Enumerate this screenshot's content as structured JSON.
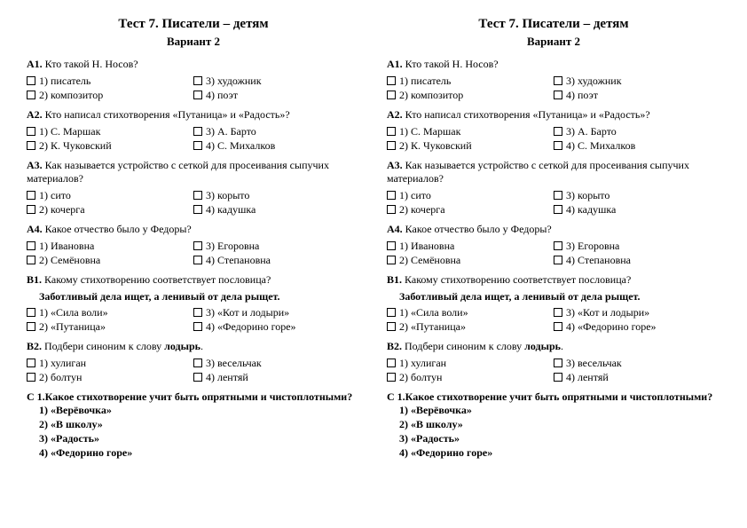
{
  "title": "Тест 7. Писатели – детям",
  "variant": "Вариант 2",
  "a1": {
    "label": "А1.",
    "text": "Кто такой Н. Носов?",
    "o1": "1) писатель",
    "o2": "2) композитор",
    "o3": "3) художник",
    "o4": "4) поэт"
  },
  "a2": {
    "label": "А2.",
    "text": "Кто написал стихотворения «Путаница» и «Радость»?",
    "o1": "1) С. Маршак",
    "o2": "2) К. Чуковский",
    "o3": "3) А. Барто",
    "o4": "4) С. Михалков"
  },
  "a3": {
    "label": "А3.",
    "text": "Как называется устройство с сеткой для просеивания сыпучих материалов?",
    "o1": "1) сито",
    "o2": "2) кочерга",
    "o3": "3) корыто",
    "o4": "4) кадушка"
  },
  "a4": {
    "label": "А4.",
    "text": "Какое отчество было у Федоры?",
    "o1": "1) Ивановна",
    "o2": "2) Семёновна",
    "o3": "3) Егоровна",
    "o4": "4) Степановна"
  },
  "b1": {
    "label": "В1.",
    "text": "Какому стихотворению соответствует пословица?",
    "proverb": "Заботливый дела ищет, а ленивый от дела рыщет.",
    "o1": "1) «Сила воли»",
    "o2": "2) «Путаница»",
    "o3": "3) «Кот и лодыри»",
    "o4": "4) «Федорино горе»"
  },
  "b2": {
    "label": "В2.",
    "text": "Подбери синоним к слову лодырь.",
    "o1": "1) хулиган",
    "o2": "2) болтун",
    "o3": "3) весельчак",
    "o4": "4) лентяй"
  },
  "c1": {
    "label": "С 1.",
    "text": "Какое стихотворение учит быть опрятными и чистоплотными?",
    "o1": "1)  «Верёвочка»",
    "o2": "2)  «В школу»",
    "o3": "3)  «Радость»",
    "o4": "4)  «Федорино горе»"
  }
}
